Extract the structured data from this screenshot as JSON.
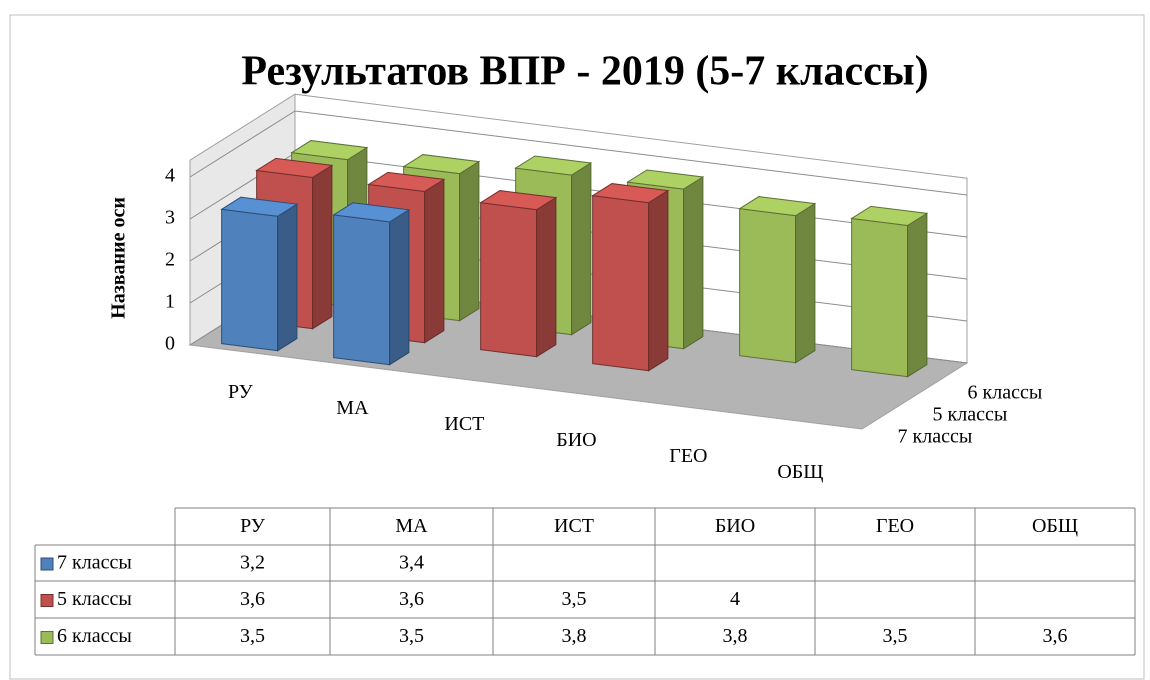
{
  "chart_data": {
    "type": "bar",
    "title": "Результатов ВПР - 2019 (5-7 классы)",
    "y_label": "Название оси",
    "categories": [
      "РУ",
      "МА",
      "ИСТ",
      "БИО",
      "ГЕО",
      "ОБЩ"
    ],
    "series": [
      {
        "name": "7 классы",
        "color": "#4f81bd",
        "values": [
          3.2,
          3.4,
          null,
          null,
          null,
          null
        ],
        "value_labels": [
          "3,2",
          "3,4",
          null,
          null,
          null,
          null
        ]
      },
      {
        "name": "5 классы",
        "color": "#c0504d",
        "values": [
          3.6,
          3.6,
          3.5,
          4,
          null,
          null
        ],
        "value_labels": [
          "3,6",
          "3,6",
          "3,5",
          "4",
          null,
          null
        ]
      },
      {
        "name": "6 классы",
        "color": "#9bbb59",
        "values": [
          3.5,
          3.5,
          3.8,
          3.8,
          3.5,
          3.6
        ],
        "value_labels": [
          "3,5",
          "3,5",
          "3,8",
          "3,8",
          "3,5",
          "3,6"
        ]
      }
    ],
    "ylim": [
      0,
      4.4
    ],
    "yticks": [
      0,
      1,
      2,
      3,
      4
    ],
    "grid": true
  }
}
